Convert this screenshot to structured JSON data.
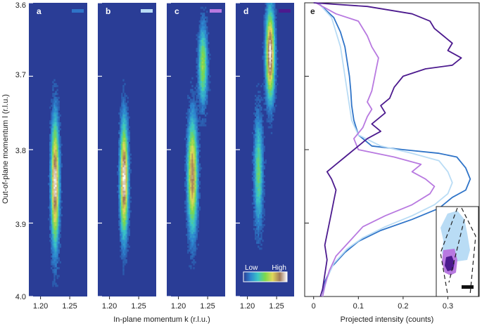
{
  "colors": {
    "background": "#2a3d96",
    "series_a": "#2f74c8",
    "series_b": "#b9dcf5",
    "series_c": "#b879e0",
    "series_d": "#4c1a8e",
    "colormap": [
      "#2a3d96",
      "#2d86d0",
      "#3cc7c4",
      "#7dd84c",
      "#e0d85a",
      "#a07a5a",
      "#ffffff"
    ]
  },
  "axes": {
    "ylabel": "Out-of-plane momentum l (r.l.u.)",
    "xlabel_maps": "In-plane momentum k (r.l.u.)",
    "xlabel_profile": "Projected intensity (counts)",
    "yticks": [
      "3.6",
      "3.7",
      "3.8",
      "3.9",
      "4.0"
    ],
    "map_xticks": [
      "1.20",
      "1.25"
    ],
    "profile_xticks": [
      "0",
      "0.1",
      "0.2",
      "0.3"
    ]
  },
  "colorbar": {
    "low_label": "Low",
    "high_label": "High"
  },
  "chart_data": [
    {
      "type": "heatmap",
      "panel": "a",
      "color_key": "series_a",
      "xlabel": "In-plane momentum k (r.l.u.)",
      "ylabel": "Out-of-plane momentum l (r.l.u.)",
      "xlim": [
        1.18,
        1.28
      ],
      "ylim": [
        4.0,
        3.6
      ],
      "xticks": [
        "1.20",
        "1.25"
      ],
      "yticks": [
        "3.6",
        "3.7",
        "3.8",
        "3.9",
        "4.0"
      ],
      "peaks": [
        {
          "k": 1.225,
          "l": 3.845,
          "sigma_k": 0.0045,
          "sigma_l": 0.055,
          "amplitude": 1.0
        }
      ]
    },
    {
      "type": "heatmap",
      "panel": "b",
      "color_key": "series_b",
      "xlim": [
        1.18,
        1.28
      ],
      "ylim": [
        4.0,
        3.6
      ],
      "xticks": [
        "1.20",
        "1.25"
      ],
      "peaks": [
        {
          "k": 1.225,
          "l": 3.84,
          "sigma_k": 0.0045,
          "sigma_l": 0.05,
          "amplitude": 1.0
        }
      ]
    },
    {
      "type": "heatmap",
      "panel": "c",
      "color_key": "series_c",
      "xlim": [
        1.18,
        1.28
      ],
      "ylim": [
        4.0,
        3.6
      ],
      "xticks": [
        "1.20",
        "1.25"
      ],
      "peaks": [
        {
          "k": 1.224,
          "l": 3.835,
          "sigma_k": 0.0055,
          "sigma_l": 0.05,
          "amplitude": 0.85
        },
        {
          "k": 1.242,
          "l": 3.685,
          "sigma_k": 0.005,
          "sigma_l": 0.035,
          "amplitude": 0.55
        }
      ]
    },
    {
      "type": "heatmap",
      "panel": "d",
      "color_key": "series_d",
      "xlim": [
        1.18,
        1.28
      ],
      "ylim": [
        4.0,
        3.6
      ],
      "xticks": [
        "1.20",
        "1.25"
      ],
      "peaks": [
        {
          "k": 1.239,
          "l": 3.67,
          "sigma_k": 0.005,
          "sigma_l": 0.04,
          "amplitude": 1.0
        },
        {
          "k": 1.219,
          "l": 3.83,
          "sigma_k": 0.005,
          "sigma_l": 0.05,
          "amplitude": 0.45
        }
      ]
    },
    {
      "type": "line",
      "panel": "e",
      "xlabel": "Projected intensity (counts)",
      "xlim": [
        -0.02,
        0.37
      ],
      "ylim": [
        4.0,
        3.6
      ],
      "xticks": [
        "0",
        "0.1",
        "0.2",
        "0.3"
      ],
      "series": [
        {
          "color_key": "series_a",
          "points": [
            [
              0.01,
              3.6
            ],
            [
              0.045,
              3.62
            ],
            [
              0.06,
              3.64
            ],
            [
              0.07,
              3.66
            ],
            [
              0.075,
              3.68
            ],
            [
              0.08,
              3.7
            ],
            [
              0.083,
              3.72
            ],
            [
              0.085,
              3.74
            ],
            [
              0.09,
              3.76
            ],
            [
              0.1,
              3.78
            ],
            [
              0.13,
              3.795
            ],
            [
              0.2,
              3.8
            ],
            [
              0.28,
              3.805
            ],
            [
              0.32,
              3.81
            ],
            [
              0.34,
              3.825
            ],
            [
              0.35,
              3.84
            ],
            [
              0.34,
              3.855
            ],
            [
              0.31,
              3.865
            ],
            [
              0.28,
              3.88
            ],
            [
              0.22,
              3.895
            ],
            [
              0.15,
              3.91
            ],
            [
              0.1,
              3.925
            ],
            [
              0.07,
              3.94
            ],
            [
              0.04,
              3.96
            ],
            [
              0.025,
              3.98
            ],
            [
              0.02,
              4.0
            ]
          ]
        },
        {
          "color_key": "series_b",
          "points": [
            [
              0.01,
              3.6
            ],
            [
              0.04,
              3.62
            ],
            [
              0.05,
              3.64
            ],
            [
              0.06,
              3.66
            ],
            [
              0.065,
              3.68
            ],
            [
              0.07,
              3.7
            ],
            [
              0.075,
              3.72
            ],
            [
              0.08,
              3.74
            ],
            [
              0.085,
              3.76
            ],
            [
              0.1,
              3.78
            ],
            [
              0.15,
              3.795
            ],
            [
              0.22,
              3.805
            ],
            [
              0.28,
              3.815
            ],
            [
              0.3,
              3.83
            ],
            [
              0.31,
              3.845
            ],
            [
              0.3,
              3.86
            ],
            [
              0.27,
              3.875
            ],
            [
              0.22,
              3.89
            ],
            [
              0.16,
              3.905
            ],
            [
              0.11,
              3.92
            ],
            [
              0.075,
              3.935
            ],
            [
              0.045,
              3.955
            ],
            [
              0.03,
              3.975
            ],
            [
              0.02,
              4.0
            ]
          ]
        },
        {
          "color_key": "series_c",
          "points": [
            [
              0.005,
              3.6
            ],
            [
              0.05,
              3.615
            ],
            [
              0.1,
              3.625
            ],
            [
              0.11,
              3.635
            ],
            [
              0.12,
              3.645
            ],
            [
              0.13,
              3.66
            ],
            [
              0.145,
              3.675
            ],
            [
              0.14,
              3.69
            ],
            [
              0.135,
              3.705
            ],
            [
              0.13,
              3.72
            ],
            [
              0.12,
              3.735
            ],
            [
              0.13,
              3.745
            ],
            [
              0.12,
              3.755
            ],
            [
              0.11,
              3.77
            ],
            [
              0.09,
              3.785
            ],
            [
              0.1,
              3.8
            ],
            [
              0.18,
              3.81
            ],
            [
              0.24,
              3.82
            ],
            [
              0.22,
              3.83
            ],
            [
              0.25,
              3.84
            ],
            [
              0.27,
              3.85
            ],
            [
              0.26,
              3.86
            ],
            [
              0.22,
              3.875
            ],
            [
              0.16,
              3.89
            ],
            [
              0.11,
              3.905
            ],
            [
              0.08,
              3.925
            ],
            [
              0.05,
              3.945
            ],
            [
              0.035,
              3.965
            ],
            [
              0.025,
              3.985
            ],
            [
              0.02,
              4.0
            ]
          ]
        },
        {
          "color_key": "series_d",
          "points": [
            [
              0.0,
              3.6
            ],
            [
              0.12,
              3.605
            ],
            [
              0.22,
              3.615
            ],
            [
              0.26,
              3.625
            ],
            [
              0.27,
              3.635
            ],
            [
              0.29,
              3.645
            ],
            [
              0.31,
              3.655
            ],
            [
              0.3,
              3.665
            ],
            [
              0.33,
              3.675
            ],
            [
              0.31,
              3.685
            ],
            [
              0.25,
              3.69
            ],
            [
              0.2,
              3.7
            ],
            [
              0.18,
              3.715
            ],
            [
              0.17,
              3.73
            ],
            [
              0.15,
              3.74
            ],
            [
              0.16,
              3.75
            ],
            [
              0.13,
              3.765
            ],
            [
              0.15,
              3.775
            ],
            [
              0.12,
              3.785
            ],
            [
              0.1,
              3.795
            ],
            [
              0.07,
              3.81
            ],
            [
              0.05,
              3.82
            ],
            [
              0.03,
              3.83
            ],
            [
              0.04,
              3.84
            ],
            [
              0.05,
              3.855
            ],
            [
              0.045,
              3.87
            ],
            [
              0.04,
              3.885
            ],
            [
              0.035,
              3.9
            ],
            [
              0.03,
              3.915
            ],
            [
              0.025,
              3.93
            ],
            [
              0.03,
              3.95
            ],
            [
              0.025,
              3.97
            ],
            [
              0.02,
              3.99
            ],
            [
              0.015,
              4.0
            ]
          ]
        }
      ]
    }
  ]
}
